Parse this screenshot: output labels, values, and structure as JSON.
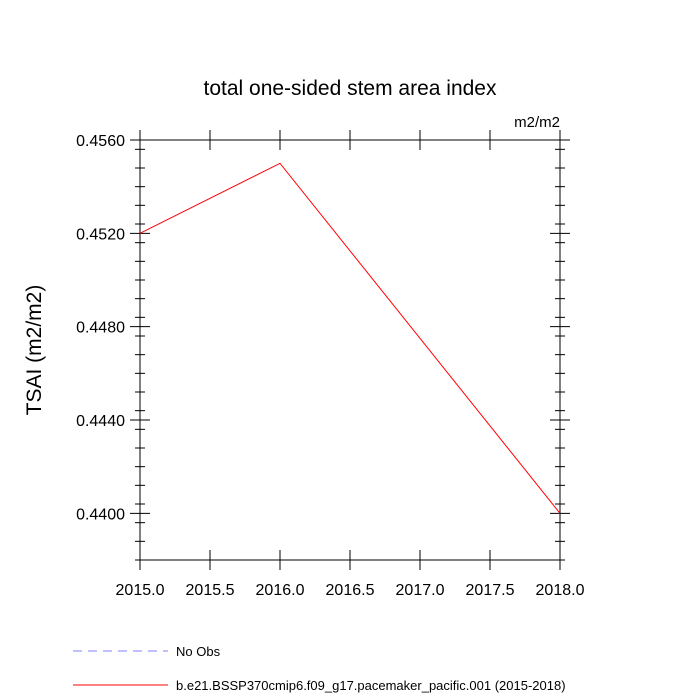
{
  "chart_data": {
    "type": "line",
    "title": "total one-sided stem area index",
    "units_label": "m2/m2",
    "xlabel": "",
    "ylabel": "TSAI  (m2/m2)",
    "xlim": [
      2015.0,
      2018.0
    ],
    "ylim": [
      0.438,
      0.456
    ],
    "x_ticks": [
      2015.0,
      2015.5,
      2016.0,
      2016.5,
      2017.0,
      2017.5,
      2018.0
    ],
    "x_tick_labels": [
      "2015.0",
      "2015.5",
      "2016.0",
      "2016.5",
      "2017.0",
      "2017.5",
      "2018.0"
    ],
    "y_ticks": [
      0.44,
      0.444,
      0.448,
      0.452,
      0.456
    ],
    "y_tick_labels": [
      "0.4400",
      "0.4440",
      "0.4480",
      "0.4520",
      "0.4560"
    ],
    "series": [
      {
        "name": "b.e21.BSSP370cmip6.f09_g17.pacemaker_pacific.001 (2015-2018)",
        "color": "#ff0000",
        "dash": "solid",
        "x": [
          2015.0,
          2016.0,
          2017.0,
          2018.0
        ],
        "y": [
          0.452,
          0.455,
          0.4475,
          0.44
        ]
      }
    ],
    "legend": [
      {
        "label": "No Obs",
        "color": "#8080ff",
        "dash": "dashed"
      },
      {
        "label": "b.e21.BSSP370cmip6.f09_g17.pacemaker_pacific.001 (2015-2018)",
        "color": "#ff0000",
        "dash": "solid"
      }
    ],
    "legend_position": "bottom-left",
    "grid": false
  }
}
